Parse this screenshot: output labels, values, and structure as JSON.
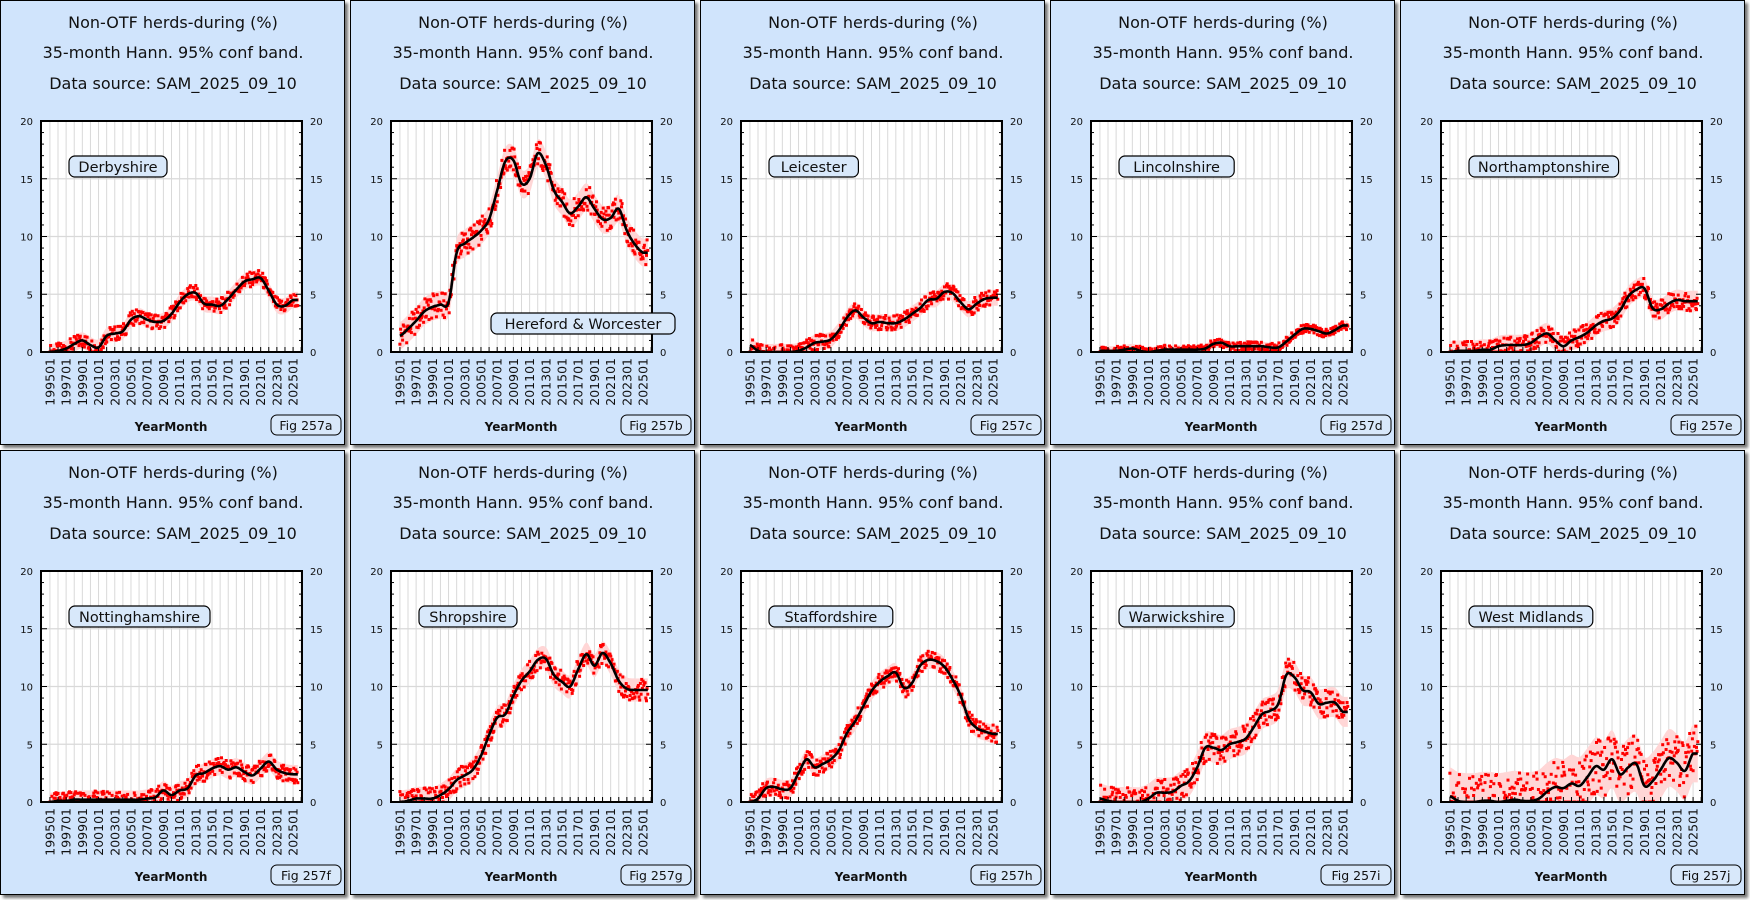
{
  "chart_data": {
    "common": {
      "type": "line",
      "title": "Non-OTF herds-during (%)",
      "subtitle": "35-month Hann. 95% conf band.",
      "source": "Data source: SAM_2025_09_10",
      "xlabel": "YearMonth",
      "x_tick_labels": [
        "199501",
        "199701",
        "199901",
        "200101",
        "200301",
        "200501",
        "200701",
        "200901",
        "201101",
        "201301",
        "201501",
        "201701",
        "201901",
        "202101",
        "202301",
        "202501"
      ],
      "x_tick_years": [
        1995,
        1997,
        1999,
        2001,
        2003,
        2005,
        2007,
        2009,
        2011,
        2013,
        2015,
        2017,
        2019,
        2021,
        2023,
        2025
      ],
      "y_tick_labels": [
        "0",
        "5",
        "10",
        "15",
        "20"
      ],
      "y_ticks": [
        0,
        5,
        10,
        15,
        20
      ],
      "ylim": [
        0,
        20
      ],
      "xlim": [
        1993.9,
        2026.1
      ],
      "x_start": 1995,
      "x_step": 1,
      "grid": true,
      "colors": {
        "panel_bg": "#d0e4fc",
        "points": "#ff0000",
        "band": "#ffd6d6",
        "line": "#000000",
        "grid": "#d9d9d9"
      }
    },
    "panels": [
      {
        "region": "Derbyshire",
        "fig_label": "Fig 257a",
        "label_position": "top-left",
        "ci_halfwidth": 0.7,
        "values": [
          0,
          0.1,
          0.3,
          0.7,
          1.0,
          0.6,
          0.4,
          1.4,
          1.6,
          1.8,
          2.8,
          3.1,
          2.8,
          2.6,
          2.7,
          3.3,
          4.3,
          5.0,
          5.1,
          4.2,
          4.1,
          4.0,
          4.6,
          5.4,
          6.1,
          6.3,
          6.4,
          5.3,
          4.1,
          4.0,
          4.5
        ]
      },
      {
        "region": "Hereford & Worcester",
        "fig_label": "Fig 257b",
        "label_position": "bottom-right",
        "ci_halfwidth": 1.2,
        "values": [
          1.4,
          2.0,
          2.7,
          3.5,
          3.9,
          4.1,
          4.3,
          8.6,
          9.4,
          9.9,
          10.5,
          11.5,
          14.0,
          16.5,
          16.6,
          14.6,
          15.0,
          17.2,
          16.2,
          14.0,
          13.0,
          12.0,
          12.6,
          13.4,
          12.4,
          11.5,
          11.6,
          12.4,
          10.5,
          9.3,
          8.6
        ]
      },
      {
        "region": "Leicester",
        "fig_label": "Fig 257c",
        "label_position": "top-left",
        "ci_halfwidth": 0.7,
        "values": [
          0.6,
          0.1,
          0,
          0,
          0,
          0,
          0.1,
          0.4,
          0.8,
          0.9,
          1.1,
          1.9,
          3.0,
          3.6,
          3.0,
          2.5,
          2.6,
          2.5,
          2.5,
          2.8,
          3.3,
          3.8,
          4.5,
          4.6,
          5.2,
          5.1,
          4.3,
          3.7,
          4.2,
          4.6,
          4.7
        ]
      },
      {
        "region": "Lincolnshire",
        "fig_label": "Fig 257d",
        "label_position": "top-left",
        "ci_halfwidth": 0.4,
        "values": [
          0.1,
          0.1,
          0.1,
          0.2,
          0.3,
          0.1,
          0,
          0.1,
          0.2,
          0.2,
          0.2,
          0.2,
          0.2,
          0.3,
          0.7,
          0.8,
          0.5,
          0.5,
          0.5,
          0.5,
          0.5,
          0.4,
          0.4,
          0.9,
          1.5,
          2.0,
          2.0,
          1.8,
          1.6,
          1.9,
          2.3
        ]
      },
      {
        "region": "Northamptonshire",
        "fig_label": "Fig 257e",
        "label_position": "top-left",
        "ci_halfwidth": 0.9,
        "values": [
          0,
          0.1,
          0.1,
          0.1,
          0.2,
          0.2,
          0.5,
          0.6,
          0.6,
          0.6,
          0.8,
          1.3,
          1.6,
          1.0,
          0.5,
          1.0,
          1.3,
          1.7,
          2.3,
          2.7,
          2.9,
          3.6,
          4.8,
          5.4,
          5.5,
          3.8,
          3.7,
          4.2,
          4.5,
          4.4,
          4.4
        ]
      },
      {
        "region": "Nottinghamshire",
        "fig_label": "Fig 257f",
        "label_position": "top-left",
        "ci_halfwidth": 0.8,
        "values": [
          0,
          0.1,
          0.1,
          0.2,
          0.2,
          0.2,
          0.2,
          0.2,
          0.2,
          0.2,
          0.2,
          0.2,
          0.3,
          0.4,
          1.0,
          0.6,
          1.0,
          1.2,
          2.3,
          2.5,
          2.9,
          3.1,
          2.8,
          3.0,
          2.6,
          2.3,
          2.9,
          3.5,
          2.8,
          2.5,
          2.4
        ]
      },
      {
        "region": "Shropshire",
        "fig_label": "Fig 257g",
        "label_position": "top-left",
        "ci_halfwidth": 1.0,
        "values": [
          0,
          0.1,
          0.3,
          0.3,
          0.3,
          0.6,
          1.1,
          1.9,
          2.3,
          2.8,
          4.0,
          5.8,
          7.3,
          7.6,
          9.2,
          10.5,
          11.3,
          12.3,
          12.4,
          11.0,
          10.4,
          10.0,
          11.5,
          12.8,
          11.8,
          12.9,
          12.0,
          10.5,
          9.8,
          9.7,
          9.7
        ]
      },
      {
        "region": "Staffordshire",
        "fig_label": "Fig 257h",
        "label_position": "top-left",
        "ci_halfwidth": 0.8,
        "values": [
          0,
          0.3,
          1.2,
          1.3,
          1.1,
          1.2,
          2.5,
          3.7,
          3.0,
          3.3,
          3.7,
          4.5,
          6.0,
          7.0,
          8.3,
          9.6,
          10.4,
          10.9,
          11.2,
          9.9,
          10.3,
          11.8,
          12.3,
          12.2,
          11.7,
          10.6,
          9.2,
          7.2,
          6.4,
          6.1,
          5.9
        ]
      },
      {
        "region": "Warwickshire",
        "fig_label": "Fig 257i",
        "label_position": "top-left",
        "ci_halfwidth": 1.3,
        "values": [
          0.3,
          0.1,
          0,
          0,
          0,
          0,
          0.3,
          0.8,
          0.8,
          0.9,
          1.4,
          1.8,
          3.0,
          4.7,
          4.7,
          4.5,
          5.0,
          5.2,
          5.5,
          6.5,
          7.6,
          7.9,
          8.5,
          11.0,
          10.8,
          9.7,
          9.5,
          8.5,
          8.6,
          8.6,
          7.8
        ]
      },
      {
        "region": "West Midlands",
        "fig_label": "Fig 257j",
        "label_position": "top-left",
        "ci_halfwidth": 2.5,
        "values": [
          0.5,
          0.1,
          0,
          0,
          0.1,
          0.1,
          0,
          0.1,
          0.2,
          0.1,
          0.1,
          0.3,
          0.9,
          1.3,
          1.2,
          1.6,
          1.4,
          2.2,
          3.1,
          2.8,
          3.7,
          2.4,
          3.0,
          3.3,
          1.4,
          1.8,
          2.8,
          3.8,
          3.4,
          2.7,
          4.2
        ]
      }
    ]
  }
}
